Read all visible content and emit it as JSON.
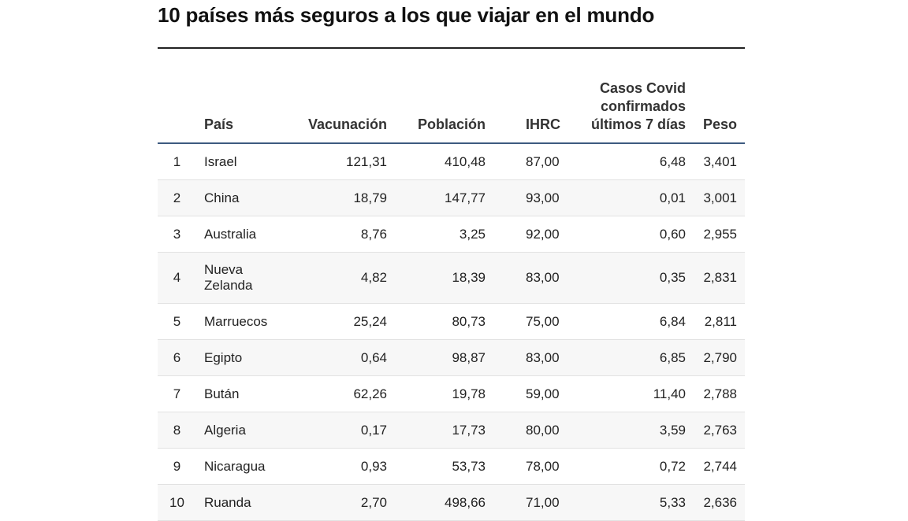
{
  "title": "10 países más seguros a los que viajar en el mundo",
  "table": {
    "headers": {
      "rank": "",
      "country": "País",
      "vaccination": "Vacunación",
      "population": "Población",
      "ihrc": "IHRC",
      "covid": "Casos Covid confirmados últimos 7 días",
      "weight": "Peso"
    },
    "rows": [
      {
        "rank": "1",
        "country": "Israel",
        "vaccination": "121,31",
        "population": "410,48",
        "ihrc": "87,00",
        "covid": "6,48",
        "weight": "3,401"
      },
      {
        "rank": "2",
        "country": "China",
        "vaccination": "18,79",
        "population": "147,77",
        "ihrc": "93,00",
        "covid": "0,01",
        "weight": "3,001"
      },
      {
        "rank": "3",
        "country": "Australia",
        "vaccination": "8,76",
        "population": "3,25",
        "ihrc": "92,00",
        "covid": "0,60",
        "weight": "2,955"
      },
      {
        "rank": "4",
        "country": "Nueva Zelanda",
        "vaccination": "4,82",
        "population": "18,39",
        "ihrc": "83,00",
        "covid": "0,35",
        "weight": "2,831"
      },
      {
        "rank": "5",
        "country": "Marruecos",
        "vaccination": "25,24",
        "population": "80,73",
        "ihrc": "75,00",
        "covid": "6,84",
        "weight": "2,811"
      },
      {
        "rank": "6",
        "country": "Egipto",
        "vaccination": "0,64",
        "population": "98,87",
        "ihrc": "83,00",
        "covid": "6,85",
        "weight": "2,790"
      },
      {
        "rank": "7",
        "country": "Bután",
        "vaccination": "62,26",
        "population": "19,78",
        "ihrc": "59,00",
        "covid": "11,40",
        "weight": "2,788"
      },
      {
        "rank": "8",
        "country": "Algeria",
        "vaccination": "0,17",
        "population": "17,73",
        "ihrc": "80,00",
        "covid": "3,59",
        "weight": "2,763"
      },
      {
        "rank": "9",
        "country": "Nicaragua",
        "vaccination": "0,93",
        "population": "53,73",
        "ihrc": "78,00",
        "covid": "0,72",
        "weight": "2,744"
      },
      {
        "rank": "10",
        "country": "Ruanda",
        "vaccination": "2,70",
        "population": "498,66",
        "ihrc": "71,00",
        "covid": "5,33",
        "weight": "2,636"
      }
    ]
  }
}
